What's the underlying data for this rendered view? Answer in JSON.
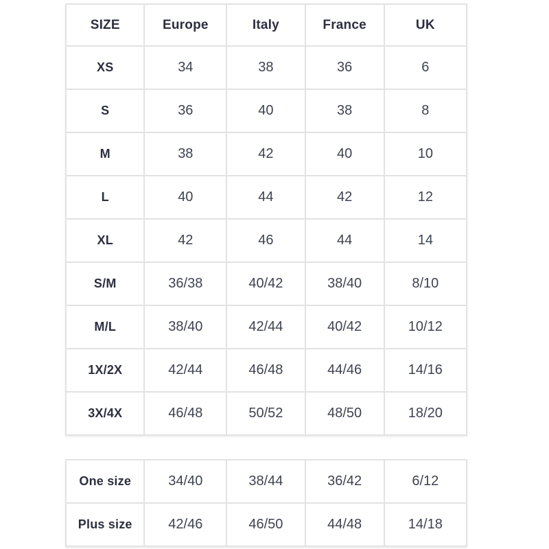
{
  "colors": {
    "background": "#ffffff",
    "border": "#e2e2e2",
    "label_text": "#2b2f3f",
    "value_text": "#3e4350"
  },
  "size_chart": {
    "headers": [
      "SIZE",
      "Europe",
      "Italy",
      "France",
      "UK"
    ],
    "rows": [
      [
        "XS",
        "34",
        "38",
        "36",
        "6"
      ],
      [
        "S",
        "36",
        "40",
        "38",
        "8"
      ],
      [
        "M",
        "38",
        "42",
        "40",
        "10"
      ],
      [
        "L",
        "40",
        "44",
        "42",
        "12"
      ],
      [
        "XL",
        "42",
        "46",
        "44",
        "14"
      ],
      [
        "S/M",
        "36/38",
        "40/42",
        "38/40",
        "8/10"
      ],
      [
        "M/L",
        "38/40",
        "42/44",
        "40/42",
        "10/12"
      ],
      [
        "1X/2X",
        "42/44",
        "46/48",
        "44/46",
        "14/16"
      ],
      [
        "3X/4X",
        "46/48",
        "50/52",
        "48/50",
        "18/20"
      ]
    ]
  },
  "special_sizes": {
    "rows": [
      [
        "One size",
        "34/40",
        "38/44",
        "36/42",
        "6/12"
      ],
      [
        "Plus size",
        "42/46",
        "46/50",
        "44/48",
        "14/18"
      ]
    ]
  }
}
